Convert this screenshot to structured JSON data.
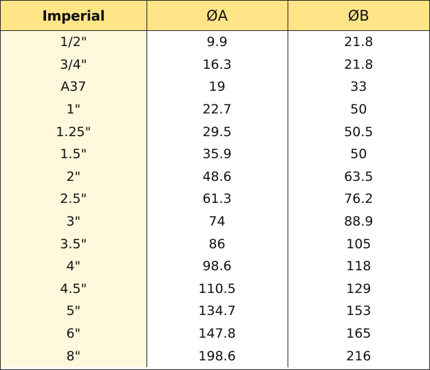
{
  "table": {
    "headers": {
      "imperial": "Imperial",
      "diameter_a": "ØA",
      "diameter_b": "ØB"
    },
    "rows": [
      {
        "imperial": "1/2\"",
        "a": "9.9",
        "b": "21.8"
      },
      {
        "imperial": "3/4\"",
        "a": "16.3",
        "b": "21.8"
      },
      {
        "imperial": "A37",
        "a": "19",
        "b": "33"
      },
      {
        "imperial": "1\"",
        "a": "22.7",
        "b": "50"
      },
      {
        "imperial": "1.25\"",
        "a": "29.5",
        "b": "50.5"
      },
      {
        "imperial": "1.5\"",
        "a": "35.9",
        "b": "50"
      },
      {
        "imperial": "2\"",
        "a": "48.6",
        "b": "63.5"
      },
      {
        "imperial": "2.5\"",
        "a": "61.3",
        "b": "76.2"
      },
      {
        "imperial": "3\"",
        "a": "74",
        "b": "88.9"
      },
      {
        "imperial": "3.5\"",
        "a": "86",
        "b": "105"
      },
      {
        "imperial": "4\"",
        "a": "98.6",
        "b": "118"
      },
      {
        "imperial": "4.5\"",
        "a": "110.5",
        "b": "129"
      },
      {
        "imperial": "5\"",
        "a": "134.7",
        "b": "153"
      },
      {
        "imperial": "6\"",
        "a": "147.8",
        "b": "165"
      },
      {
        "imperial": "8\"",
        "a": "198.6",
        "b": "216"
      }
    ]
  },
  "colors": {
    "header_background": "#ffe587",
    "imperial_column_background": "#fff8dc",
    "border": "#222222"
  }
}
